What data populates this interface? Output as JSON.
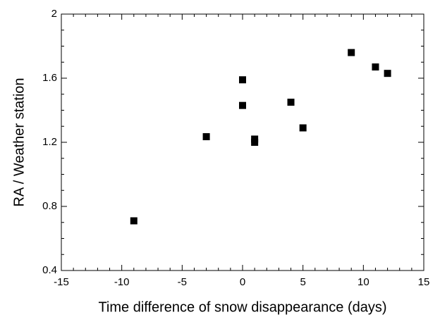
{
  "chart_data": {
    "type": "scatter",
    "x_label": "Time difference of snow disappearance (days)",
    "y_label": "RA / Weather station",
    "x": [
      -9,
      -3,
      0,
      0,
      1,
      1,
      4,
      5,
      9,
      11,
      12
    ],
    "values": [
      0.71,
      1.235,
      1.59,
      1.43,
      1.22,
      1.2,
      1.45,
      1.29,
      1.76,
      1.67,
      1.63
    ],
    "color": "#000000",
    "xlim": [
      -15,
      15
    ],
    "xticks": [
      -15,
      -10,
      -5,
      0,
      5,
      10,
      15
    ],
    "ylim": [
      0.4,
      2
    ],
    "yticks": [
      0.4,
      0.8,
      1.2,
      1.6,
      2
    ]
  }
}
